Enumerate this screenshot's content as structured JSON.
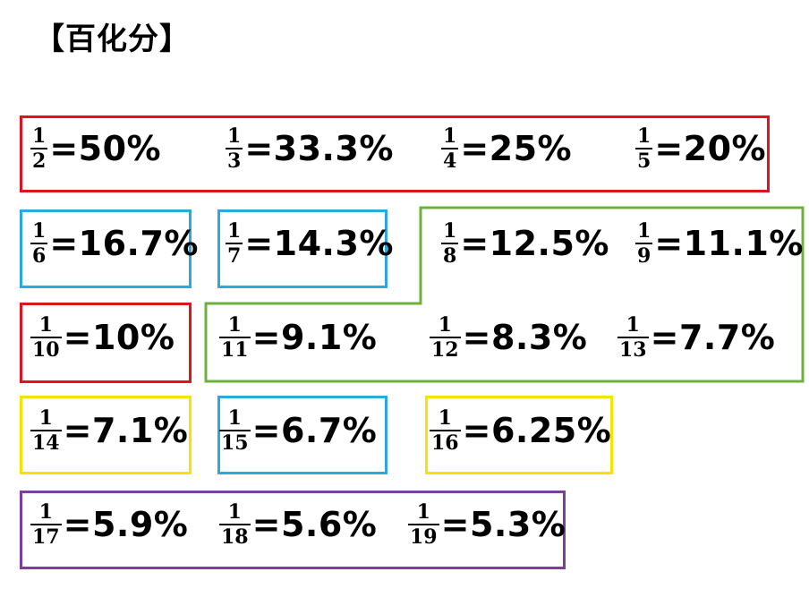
{
  "title": "【百化分】",
  "colors": {
    "red": "#e0141e",
    "blue": "#2aa8e0",
    "green": "#6fb03c",
    "yellow": "#f5e400",
    "purple": "#7b3fa0"
  },
  "items": [
    {
      "num": "1",
      "den": "2",
      "value": "=50%"
    },
    {
      "num": "1",
      "den": "3",
      "value": "=33.3%"
    },
    {
      "num": "1",
      "den": "4",
      "value": "=25%"
    },
    {
      "num": "1",
      "den": "5",
      "value": "=20%"
    },
    {
      "num": "1",
      "den": "6",
      "value": "=16.7%"
    },
    {
      "num": "1",
      "den": "7",
      "value": "=14.3%"
    },
    {
      "num": "1",
      "den": "8",
      "value": "=12.5%"
    },
    {
      "num": "1",
      "den": "9",
      "value": "=11.1%"
    },
    {
      "num": "1",
      "den": "10",
      "value": "=10%"
    },
    {
      "num": "1",
      "den": "11",
      "value": "=9.1%"
    },
    {
      "num": "1",
      "den": "12",
      "value": "=8.3%"
    },
    {
      "num": "1",
      "den": "13",
      "value": "=7.7%"
    },
    {
      "num": "1",
      "den": "14",
      "value": "=7.1%"
    },
    {
      "num": "1",
      "den": "15",
      "value": "=6.7%"
    },
    {
      "num": "1",
      "den": "16",
      "value": "=6.25%"
    },
    {
      "num": "1",
      "den": "17",
      "value": "=5.9%"
    },
    {
      "num": "1",
      "den": "18",
      "value": "=5.6%"
    },
    {
      "num": "1",
      "den": "19",
      "value": "=5.3%"
    }
  ]
}
